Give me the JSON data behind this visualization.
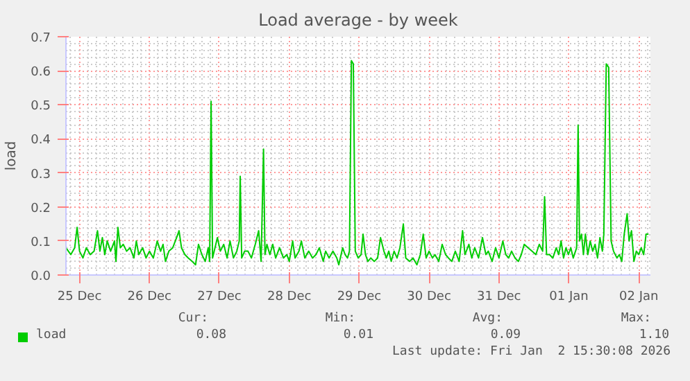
{
  "chart_data": {
    "type": "line",
    "title": "Load average - by week",
    "ylabel": "load",
    "xlim": [
      "2025-12-24T19:20",
      "2026-01-02T04:00"
    ],
    "ylim": [
      0,
      0.7
    ],
    "xticks": [
      {
        "value": "2025-12-25",
        "label": "25 Dec"
      },
      {
        "value": "2025-12-26",
        "label": "26 Dec"
      },
      {
        "value": "2025-12-27",
        "label": "27 Dec"
      },
      {
        "value": "2025-12-28",
        "label": "28 Dec"
      },
      {
        "value": "2025-12-29",
        "label": "29 Dec"
      },
      {
        "value": "2025-12-30",
        "label": "30 Dec"
      },
      {
        "value": "2025-12-31",
        "label": "31 Dec"
      },
      {
        "value": "2026-01-01",
        "label": "01 Jan"
      },
      {
        "value": "2026-01-02",
        "label": "02 Jan"
      }
    ],
    "yticks": [
      {
        "value": 0,
        "label": "0.0"
      },
      0.1,
      0.2,
      0.3,
      0.4,
      0.5,
      0.6,
      0.7
    ],
    "grid": true,
    "legend": "bottom",
    "marker": "none",
    "line_style": "solid",
    "annotations": [
      "Cur:",
      "Min:",
      "Avg:",
      "Max:",
      "0.08",
      "0.01",
      "0.09",
      "1.10",
      "Last update: Fri Jan  2 15:30:08 2026"
    ],
    "series": [
      {
        "name": "load",
        "color": "#00cc00",
        "x": [
          "2025-12-24T19:20",
          "2025-12-24T21:00",
          "2025-12-24T22:20",
          "2025-12-24T23:10",
          "2025-12-25T00:00",
          "2025-12-25T01:10",
          "2025-12-25T02:20",
          "2025-12-25T03:40",
          "2025-12-25T05:00",
          "2025-12-25T06:10",
          "2025-12-25T07:00",
          "2025-12-25T07:50",
          "2025-12-25T08:40",
          "2025-12-25T09:30",
          "2025-12-25T10:40",
          "2025-12-25T12:00",
          "2025-12-25T12:30",
          "2025-12-25T13:10",
          "2025-12-25T14:00",
          "2025-12-25T15:00",
          "2025-12-25T16:10",
          "2025-12-25T17:20",
          "2025-12-25T18:40",
          "2025-12-25T19:30",
          "2025-12-25T20:20",
          "2025-12-25T21:40",
          "2025-12-25T22:50",
          "2025-12-26T00:00",
          "2025-12-26T01:20",
          "2025-12-26T02:40",
          "2025-12-26T03:50",
          "2025-12-26T04:40",
          "2025-12-26T05:30",
          "2025-12-26T06:40",
          "2025-12-26T08:00",
          "2025-12-26T09:20",
          "2025-12-26T10:10",
          "2025-12-26T11:00",
          "2025-12-26T12:10",
          "2025-12-26T13:20",
          "2025-12-26T14:40",
          "2025-12-26T15:50",
          "2025-12-26T16:50",
          "2025-12-26T18:00",
          "2025-12-26T19:10",
          "2025-12-26T20:10",
          "2025-12-26T20:40",
          "2025-12-26T21:10",
          "2025-12-26T21:40",
          "2025-12-26T22:30",
          "2025-12-26T23:20",
          "2025-12-27T00:20",
          "2025-12-27T01:30",
          "2025-12-27T02:40",
          "2025-12-27T03:40",
          "2025-12-27T04:50",
          "2025-12-27T06:00",
          "2025-12-27T06:50",
          "2025-12-27T07:10",
          "2025-12-27T07:40",
          "2025-12-27T08:40",
          "2025-12-27T09:50",
          "2025-12-27T11:00",
          "2025-12-27T12:20",
          "2025-12-27T13:30",
          "2025-12-27T14:20",
          "2025-12-27T15:10",
          "2025-12-27T15:40",
          "2025-12-27T16:20",
          "2025-12-27T17:20",
          "2025-12-27T18:20",
          "2025-12-27T19:20",
          "2025-12-27T20:40",
          "2025-12-27T22:00",
          "2025-12-27T23:10",
          "2025-12-28T00:00",
          "2025-12-28T01:10",
          "2025-12-28T02:00",
          "2025-12-28T03:20",
          "2025-12-28T04:10",
          "2025-12-28T05:20",
          "2025-12-28T06:40",
          "2025-12-28T08:00",
          "2025-12-28T09:10",
          "2025-12-28T10:20",
          "2025-12-28T11:40",
          "2025-12-28T12:30",
          "2025-12-28T13:40",
          "2025-12-28T15:00",
          "2025-12-28T16:20",
          "2025-12-28T17:00",
          "2025-12-28T18:20",
          "2025-12-28T19:10",
          "2025-12-28T20:00",
          "2025-12-28T20:40",
          "2025-12-28T21:20",
          "2025-12-28T22:00",
          "2025-12-28T22:40",
          "2025-12-28T23:40",
          "2025-12-29T00:40",
          "2025-12-29T01:20",
          "2025-12-29T02:10",
          "2025-12-29T03:00",
          "2025-12-29T04:00",
          "2025-12-29T05:10",
          "2025-12-29T06:20",
          "2025-12-29T07:20",
          "2025-12-29T08:30",
          "2025-12-29T09:20",
          "2025-12-29T10:10",
          "2025-12-29T11:00",
          "2025-12-29T12:00",
          "2025-12-29T13:00",
          "2025-12-29T14:00",
          "2025-12-29T15:10",
          "2025-12-29T16:00",
          "2025-12-29T17:20",
          "2025-12-29T18:30",
          "2025-12-29T19:50",
          "2025-12-29T21:00",
          "2025-12-29T22:00",
          "2025-12-29T23:00",
          "2025-12-30T00:00",
          "2025-12-30T01:10",
          "2025-12-30T02:00",
          "2025-12-30T03:20",
          "2025-12-30T04:30",
          "2025-12-30T05:40",
          "2025-12-30T06:40",
          "2025-12-30T07:50",
          "2025-12-30T09:00",
          "2025-12-30T10:20",
          "2025-12-30T11:30",
          "2025-12-30T12:20",
          "2025-12-30T13:40",
          "2025-12-30T14:40",
          "2025-12-30T15:40",
          "2025-12-30T17:00",
          "2025-12-30T18:20",
          "2025-12-30T19:30",
          "2025-12-30T20:20",
          "2025-12-30T21:40",
          "2025-12-30T22:50",
          "2025-12-31T00:00",
          "2025-12-31T01:20",
          "2025-12-31T02:20",
          "2025-12-31T03:20",
          "2025-12-31T04:20",
          "2025-12-31T05:30",
          "2025-12-31T06:40",
          "2025-12-31T07:40",
          "2025-12-31T08:40",
          "2025-12-31T10:00",
          "2025-12-31T11:20",
          "2025-12-31T12:40",
          "2025-12-31T13:50",
          "2025-12-31T15:00",
          "2025-12-31T15:40",
          "2025-12-31T16:20",
          "2025-12-31T17:20",
          "2025-12-31T18:30",
          "2025-12-31T19:40",
          "2025-12-31T20:30",
          "2025-12-31T21:20",
          "2025-12-31T22:10",
          "2025-12-31T23:00",
          "2025-12-31T23:50",
          "2026-01-01T00:40",
          "2026-01-01T01:30",
          "2026-01-01T02:40",
          "2026-01-01T03:10",
          "2026-01-01T03:40",
          "2026-01-01T04:20",
          "2026-01-01T05:00",
          "2026-01-01T05:40",
          "2026-01-01T06:30",
          "2026-01-01T07:20",
          "2026-01-01T08:10",
          "2026-01-01T09:00",
          "2026-01-01T09:50",
          "2026-01-01T10:40",
          "2026-01-01T11:30",
          "2026-01-01T12:00",
          "2026-01-01T12:50",
          "2026-01-01T13:40",
          "2026-01-01T14:30",
          "2026-01-01T15:20",
          "2026-01-01T16:30",
          "2026-01-01T17:20",
          "2026-01-01T18:10",
          "2026-01-01T19:00",
          "2026-01-01T20:00",
          "2026-01-01T20:40",
          "2026-01-01T21:30",
          "2026-01-01T22:20",
          "2026-01-01T23:10",
          "2026-01-02T00:00",
          "2026-01-02T00:50",
          "2026-01-02T01:40",
          "2026-01-02T02:30",
          "2026-01-02T03:20"
        ],
        "values": [
          0.08,
          0.06,
          0.08,
          0.14,
          0.07,
          0.05,
          0.08,
          0.06,
          0.07,
          0.13,
          0.07,
          0.11,
          0.06,
          0.1,
          0.07,
          0.1,
          0.04,
          0.14,
          0.08,
          0.09,
          0.07,
          0.08,
          0.05,
          0.1,
          0.06,
          0.08,
          0.05,
          0.07,
          0.05,
          0.1,
          0.07,
          0.09,
          0.04,
          0.07,
          0.08,
          0.11,
          0.13,
          0.08,
          0.06,
          0.05,
          0.04,
          0.03,
          0.09,
          0.06,
          0.04,
          0.08,
          0.04,
          0.51,
          0.05,
          0.08,
          0.11,
          0.07,
          0.09,
          0.05,
          0.1,
          0.05,
          0.07,
          0.1,
          0.29,
          0.05,
          0.07,
          0.07,
          0.05,
          0.09,
          0.13,
          0.04,
          0.37,
          0.06,
          0.09,
          0.06,
          0.09,
          0.05,
          0.08,
          0.05,
          0.06,
          0.04,
          0.1,
          0.05,
          0.07,
          0.1,
          0.05,
          0.07,
          0.05,
          0.06,
          0.08,
          0.04,
          0.07,
          0.05,
          0.07,
          0.05,
          0.03,
          0.08,
          0.06,
          0.05,
          0.07,
          0.63,
          0.62,
          0.07,
          0.05,
          0.06,
          0.12,
          0.06,
          0.04,
          0.05,
          0.04,
          0.05,
          0.11,
          0.07,
          0.05,
          0.07,
          0.04,
          0.07,
          0.05,
          0.08,
          0.15,
          0.05,
          0.04,
          0.05,
          0.03,
          0.06,
          0.12,
          0.05,
          0.07,
          0.05,
          0.06,
          0.04,
          0.09,
          0.06,
          0.05,
          0.04,
          0.07,
          0.04,
          0.13,
          0.06,
          0.09,
          0.05,
          0.08,
          0.05,
          0.11,
          0.06,
          0.07,
          0.04,
          0.08,
          0.05,
          0.1,
          0.06,
          0.05,
          0.07,
          0.05,
          0.04,
          0.06,
          0.09,
          0.08,
          0.07,
          0.06,
          0.09,
          0.07,
          0.23,
          0.06,
          0.06,
          0.05,
          0.08,
          0.06,
          0.1,
          0.05,
          0.08,
          0.06,
          0.08,
          0.05,
          0.08,
          0.44,
          0.1,
          0.12,
          0.06,
          0.12,
          0.06,
          0.1,
          0.07,
          0.09,
          0.05,
          0.11,
          0.07,
          0.12,
          0.62,
          0.61,
          0.1,
          0.07,
          0.05,
          0.06,
          0.04,
          0.12,
          0.18,
          0.1,
          0.13,
          0.04,
          0.07,
          0.06,
          0.08,
          0.06,
          0.12,
          0.12
        ]
      }
    ]
  }
}
